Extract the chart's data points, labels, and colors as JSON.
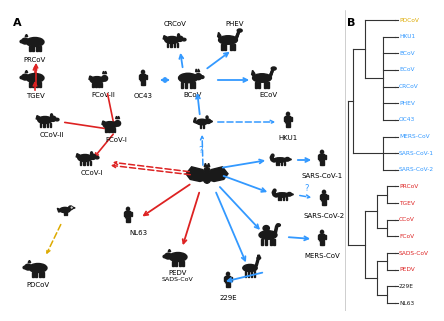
{
  "panel_A_label": "A",
  "panel_B_label": "B",
  "bg_color": "#ffffff",
  "animal_color": "#1a1a1a",
  "blue": "#3399ff",
  "red": "#dd2222",
  "yellow": "#ddaa00",
  "tree_color": "#333333",
  "tree_leaves": [
    {
      "name": "PDCoV",
      "color": "#ddaa00"
    },
    {
      "name": "HKU1",
      "color": "#3399ff"
    },
    {
      "name": "BCoV",
      "color": "#3399ff"
    },
    {
      "name": "ECoV",
      "color": "#3399ff"
    },
    {
      "name": "CRCoV",
      "color": "#3399ff"
    },
    {
      "name": "PHEV",
      "color": "#3399ff"
    },
    {
      "name": "OC43",
      "color": "#3399ff"
    },
    {
      "name": "MERS-CoV",
      "color": "#3399ff"
    },
    {
      "name": "SARS-CoV-1",
      "color": "#3399ff"
    },
    {
      "name": "SARS-CoV-2",
      "color": "#3399ff"
    },
    {
      "name": "PRCoV",
      "color": "#dd2222"
    },
    {
      "name": "TGEV",
      "color": "#dd2222"
    },
    {
      "name": "CCoV",
      "color": "#dd2222"
    },
    {
      "name": "FCoV",
      "color": "#dd2222"
    },
    {
      "name": "SADS-CoV",
      "color": "#dd2222"
    },
    {
      "name": "PEDV",
      "color": "#dd2222"
    },
    {
      "name": "229E",
      "color": "#1a1a1a"
    },
    {
      "name": "NL63",
      "color": "#1a1a1a"
    }
  ]
}
